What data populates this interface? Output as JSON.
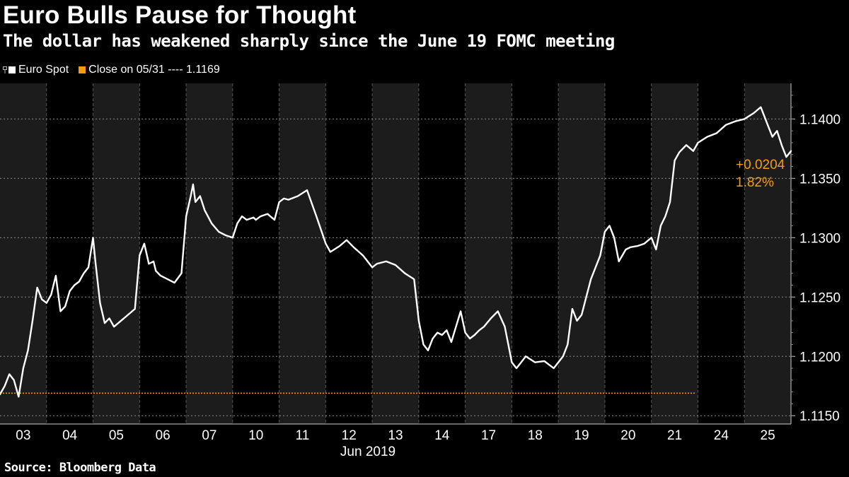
{
  "title": "Euro Bulls Pause for Thought",
  "subtitle": "The dollar has weakened sharply since the June 19 FOMC meeting",
  "legend": {
    "series_label": "Euro Spot",
    "close_label": "Close on 05/31 ---- 1.1169"
  },
  "source": "Source: Bloomberg Data",
  "annotation": {
    "change": "+0.0204",
    "percent": "1.82%"
  },
  "colors": {
    "background": "#000000",
    "band": "#1c1c1c",
    "line": "#ffffff",
    "reference": "#f39c12",
    "grid": "#8a8a8a"
  },
  "chart_data": {
    "type": "line",
    "title": "Euro Bulls Pause for Thought",
    "subtitle": "The dollar has weakened sharply since the June 19 FOMC meeting",
    "xlabel": "Jun 2019",
    "ylabel": "",
    "ylim": [
      1.1143,
      1.143
    ],
    "y_ticks": [
      "1.1150",
      "1.1200",
      "1.1250",
      "1.1300",
      "1.1350",
      "1.1400"
    ],
    "y_tick_values": [
      1.115,
      1.12,
      1.125,
      1.13,
      1.135,
      1.14
    ],
    "x_ticks": [
      "03",
      "04",
      "05",
      "06",
      "07",
      "10",
      "11",
      "12",
      "13",
      "14",
      "17",
      "18",
      "19",
      "20",
      "21",
      "24",
      "25"
    ],
    "x_unit": "trading days from start of 03 Jun",
    "grid": true,
    "legend_position": "top-left",
    "reference_line": {
      "name": "Close on 05/31",
      "value": 1.1169
    },
    "last_value": 1.1373,
    "series": [
      {
        "name": "Euro Spot",
        "x": [
          0,
          0.1,
          0.2,
          0.3,
          0.4,
          0.5,
          0.6,
          0.7,
          0.8,
          0.9,
          1.0,
          1.1,
          1.2,
          1.3,
          1.4,
          1.5,
          1.6,
          1.7,
          1.8,
          1.9,
          2.0,
          2.05,
          2.15,
          2.25,
          2.35,
          2.45,
          2.6,
          2.75,
          2.9,
          3.0,
          3.1,
          3.2,
          3.3,
          3.35,
          3.45,
          3.6,
          3.75,
          3.9,
          4.0,
          4.1,
          4.15,
          4.2,
          4.3,
          4.4,
          4.55,
          4.7,
          4.85,
          5.0,
          5.1,
          5.2,
          5.3,
          5.45,
          5.5,
          5.6,
          5.75,
          5.9,
          6.0,
          6.1,
          6.2,
          6.4,
          6.6,
          6.8,
          7.0,
          7.1,
          7.3,
          7.45,
          7.6,
          7.8,
          8.0,
          8.1,
          8.3,
          8.5,
          8.7,
          8.9,
          9.0,
          9.1,
          9.2,
          9.3,
          9.4,
          9.5,
          9.6,
          9.7,
          9.8,
          9.9,
          10.0,
          10.1,
          10.2,
          10.3,
          10.4,
          10.55,
          10.7,
          10.85,
          11.0,
          11.1,
          11.2,
          11.3,
          11.5,
          11.7,
          11.9,
          12.0,
          12.1,
          12.2,
          12.3,
          12.4,
          12.5,
          12.6,
          12.7,
          12.8,
          12.9,
          13.0,
          13.1,
          13.2,
          13.3,
          13.45,
          13.55,
          13.7,
          13.85,
          14.0,
          14.1,
          14.2,
          14.3,
          14.4,
          14.5,
          14.6,
          14.75,
          14.9,
          15.0,
          15.2,
          15.4,
          15.6,
          15.8,
          16.0,
          16.2,
          16.35,
          16.5,
          16.6,
          16.7,
          16.8,
          16.9,
          17.0
        ],
        "values": [
          1.1168,
          1.1175,
          1.1185,
          1.118,
          1.1166,
          1.119,
          1.1205,
          1.123,
          1.1258,
          1.1248,
          1.1245,
          1.1252,
          1.1268,
          1.1238,
          1.1242,
          1.1255,
          1.126,
          1.1263,
          1.127,
          1.1275,
          1.13,
          1.128,
          1.1245,
          1.1228,
          1.1232,
          1.1225,
          1.123,
          1.1235,
          1.124,
          1.1285,
          1.1295,
          1.1278,
          1.128,
          1.1272,
          1.1268,
          1.1265,
          1.1262,
          1.127,
          1.1318,
          1.1335,
          1.1345,
          1.133,
          1.1335,
          1.1323,
          1.1312,
          1.1305,
          1.1302,
          1.13,
          1.1312,
          1.1318,
          1.1315,
          1.1317,
          1.1315,
          1.1318,
          1.132,
          1.1315,
          1.133,
          1.1333,
          1.1332,
          1.1335,
          1.134,
          1.1318,
          1.1295,
          1.1288,
          1.1293,
          1.1298,
          1.1292,
          1.1285,
          1.1275,
          1.1278,
          1.128,
          1.1277,
          1.127,
          1.1265,
          1.123,
          1.121,
          1.1205,
          1.1215,
          1.122,
          1.1218,
          1.1222,
          1.1212,
          1.1225,
          1.1238,
          1.122,
          1.1215,
          1.1218,
          1.1222,
          1.1225,
          1.1232,
          1.1238,
          1.1225,
          1.1195,
          1.119,
          1.1195,
          1.12,
          1.1195,
          1.1196,
          1.119,
          1.1195,
          1.12,
          1.121,
          1.124,
          1.123,
          1.1235,
          1.125,
          1.1265,
          1.1275,
          1.1285,
          1.1305,
          1.131,
          1.13,
          1.128,
          1.129,
          1.1292,
          1.1293,
          1.1295,
          1.13,
          1.129,
          1.131,
          1.1318,
          1.133,
          1.1365,
          1.1372,
          1.1378,
          1.1373,
          1.138,
          1.1385,
          1.1388,
          1.1395,
          1.1398,
          1.14,
          1.1405,
          1.141,
          1.1395,
          1.1385,
          1.139,
          1.1378,
          1.1368,
          1.1373
        ]
      }
    ]
  }
}
